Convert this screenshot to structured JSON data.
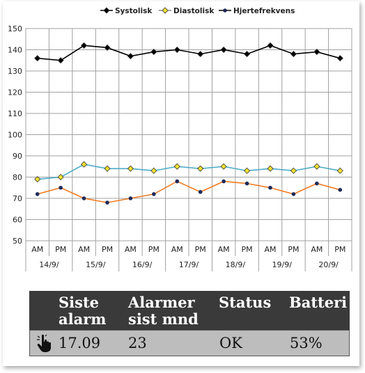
{
  "chart_data": {
    "type": "line",
    "categories": [
      "AM",
      "PM",
      "AM",
      "PM",
      "AM",
      "PM",
      "AM",
      "PM",
      "AM",
      "PM",
      "AM",
      "PM",
      "AM",
      "PM"
    ],
    "groups": [
      "14/9/",
      "15/9/",
      "16/9/",
      "17/9/",
      "18/9/",
      "19/9/",
      "20/9/"
    ],
    "ylim": [
      50,
      150
    ],
    "yticks": [
      "150",
      "140",
      "130",
      "120",
      "110",
      "100",
      "90",
      "80",
      "70",
      "60",
      "50"
    ],
    "grid": true,
    "legend_position": "top",
    "series": [
      {
        "name": "Systolisk",
        "color": "#000000",
        "marker": "diamond",
        "marker_fill": "#000000",
        "values": [
          136,
          135,
          142,
          141,
          137,
          139,
          140,
          138,
          140,
          138,
          142,
          138,
          139,
          136
        ]
      },
      {
        "name": "Diastolisk",
        "color": "#4bacc6",
        "marker": "diamond",
        "marker_fill": "#f0e030",
        "values": [
          79,
          80,
          86,
          84,
          84,
          83,
          85,
          84,
          85,
          83,
          84,
          83,
          85,
          83
        ]
      },
      {
        "name": "Hjertefrekvens",
        "color": "#f07b20",
        "marker": "circle",
        "marker_fill": "#1f2a5a",
        "values": [
          72,
          75,
          70,
          68,
          70,
          72,
          78,
          73,
          78,
          77,
          75,
          72,
          77,
          74
        ]
      }
    ]
  },
  "table": {
    "headers": {
      "last_alarm": [
        "Siste",
        "alarm"
      ],
      "alarms_month": [
        "Alarmer",
        "sist mnd"
      ],
      "status": "Status",
      "battery": "Batteri"
    },
    "row": {
      "icon": "hand-pointer-icon",
      "last_alarm": "17.09",
      "alarms_month": "23",
      "status": "OK",
      "battery": "53%"
    }
  }
}
